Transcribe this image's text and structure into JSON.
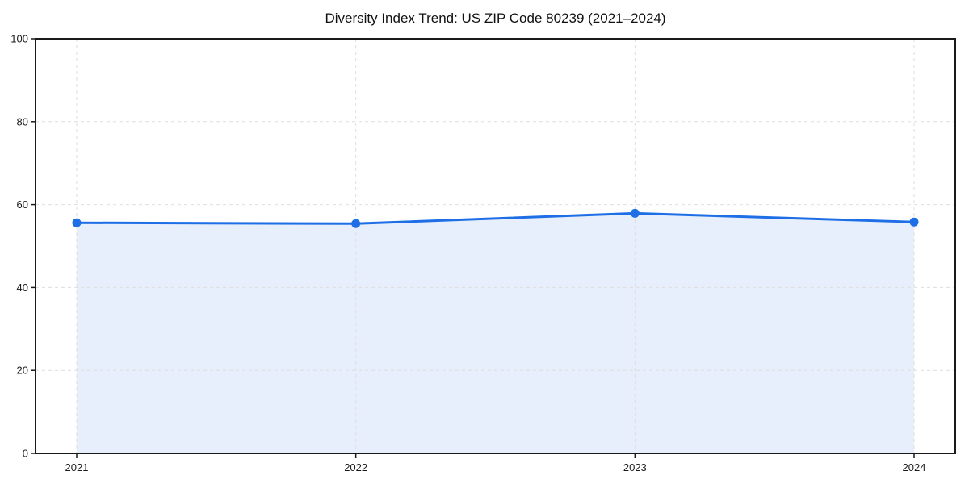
{
  "chart_data": {
    "type": "line",
    "title": "Diversity Index Trend: US ZIP Code 80239 (2021–2024)",
    "categories": [
      "2021",
      "2022",
      "2023",
      "2024"
    ],
    "values": [
      55.6,
      55.4,
      57.9,
      55.8
    ],
    "series_name": "Diversity Index",
    "xlabel": "",
    "ylabel": "",
    "ylim": [
      0,
      100
    ],
    "yticks": [
      0,
      20,
      40,
      60,
      80,
      100
    ],
    "grid": true,
    "grid_style": "dashed",
    "legend": false,
    "marker": "circle",
    "area_fill": true,
    "colors": {
      "line": "#1e6ee6",
      "fill": "#e7effc",
      "grid": "#dedede",
      "axis": "#1a1a1a",
      "text": "#1a1a1a",
      "background": "#ffffff"
    }
  }
}
